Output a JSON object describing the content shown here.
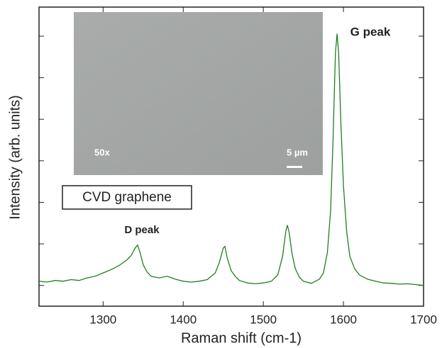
{
  "chart_data": {
    "type": "line",
    "xlabel": "Raman shift (cm-1)",
    "ylabel": "Intensity (arb. units)",
    "xlim": [
      1220,
      1700
    ],
    "xticks": [
      1300,
      1400,
      1500,
      1600,
      1700
    ],
    "ylim": [
      -0.5,
      6.7
    ],
    "yticks": [
      0,
      1,
      2,
      3,
      4,
      5,
      6
    ],
    "annotations": {
      "g_peak": "G peak",
      "d_peak": "D peak",
      "sample": "CVD graphene",
      "magnification": "50x",
      "scale_bar": "5 µm"
    },
    "series": [
      {
        "color": "#1f7f1f",
        "x": [
          1220,
          1230,
          1240,
          1250,
          1260,
          1270,
          1280,
          1290,
          1300,
          1310,
          1320,
          1330,
          1335,
          1340,
          1343,
          1346,
          1350,
          1355,
          1360,
          1370,
          1380,
          1390,
          1400,
          1410,
          1420,
          1430,
          1440,
          1445,
          1450,
          1452,
          1455,
          1460,
          1465,
          1470,
          1480,
          1490,
          1500,
          1510,
          1518,
          1524,
          1528,
          1530,
          1532,
          1536,
          1540,
          1545,
          1550,
          1560,
          1570,
          1575,
          1580,
          1584,
          1587,
          1590,
          1592,
          1594,
          1597,
          1600,
          1604,
          1608,
          1614,
          1620,
          1630,
          1640,
          1650,
          1660,
          1670,
          1680,
          1690,
          1700
        ],
        "values": [
          0.1,
          0.08,
          0.12,
          0.1,
          0.14,
          0.12,
          0.18,
          0.22,
          0.3,
          0.38,
          0.48,
          0.62,
          0.72,
          0.9,
          0.97,
          0.8,
          0.5,
          0.32,
          0.22,
          0.18,
          0.22,
          0.15,
          0.1,
          0.08,
          0.1,
          0.14,
          0.3,
          0.55,
          0.9,
          0.94,
          0.65,
          0.35,
          0.22,
          0.12,
          0.06,
          0.04,
          0.06,
          0.1,
          0.25,
          0.7,
          1.3,
          1.45,
          1.3,
          0.75,
          0.4,
          0.2,
          0.1,
          0.05,
          0.15,
          0.3,
          0.8,
          1.8,
          3.5,
          5.6,
          6.06,
          5.6,
          3.8,
          2.4,
          1.3,
          0.7,
          0.4,
          0.25,
          0.15,
          0.1,
          0.06,
          0.05,
          0.03,
          0.04,
          0.02,
          0.0
        ]
      }
    ]
  }
}
